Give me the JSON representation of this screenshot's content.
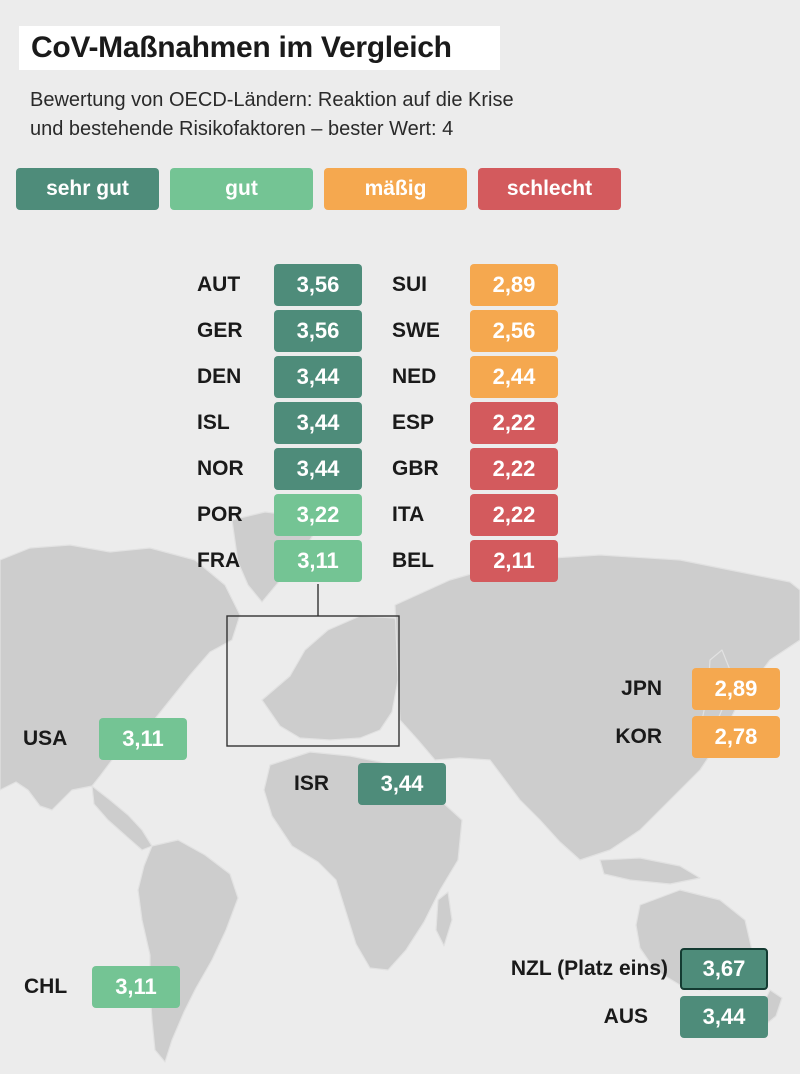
{
  "header": {
    "title": "CoV-Maßnahmen im Vergleich",
    "subtitle_line1": "Bewertung von OECD-Ländern: Reaktion auf die Krise",
    "subtitle_line2": "und bestehende Risikofaktoren – bester Wert: 4"
  },
  "colors": {
    "sehr_gut": "#4e8c7a",
    "gut": "#74c494",
    "maessig": "#f5a84f",
    "schlecht": "#d35a5d",
    "map_land": "#cdcdcd",
    "background": "#ececec"
  },
  "legend": [
    {
      "label": "sehr gut",
      "category": "sehr_gut"
    },
    {
      "label": "gut",
      "category": "gut"
    },
    {
      "label": "mäßig",
      "category": "maessig"
    },
    {
      "label": "schlecht",
      "category": "schlecht"
    }
  ],
  "europe_left": [
    {
      "code": "AUT",
      "score": "3,56",
      "category": "sehr_gut"
    },
    {
      "code": "GER",
      "score": "3,56",
      "category": "sehr_gut"
    },
    {
      "code": "DEN",
      "score": "3,44",
      "category": "sehr_gut"
    },
    {
      "code": "ISL",
      "score": "3,44",
      "category": "sehr_gut"
    },
    {
      "code": "NOR",
      "score": "3,44",
      "category": "sehr_gut"
    },
    {
      "code": "POR",
      "score": "3,22",
      "category": "gut"
    },
    {
      "code": "FRA",
      "score": "3,11",
      "category": "gut"
    }
  ],
  "europe_right": [
    {
      "code": "SUI",
      "score": "2,89",
      "category": "maessig"
    },
    {
      "code": "SWE",
      "score": "2,56",
      "category": "maessig"
    },
    {
      "code": "NED",
      "score": "2,44",
      "category": "maessig"
    },
    {
      "code": "ESP",
      "score": "2,22",
      "category": "schlecht"
    },
    {
      "code": "GBR",
      "score": "2,22",
      "category": "schlecht"
    },
    {
      "code": "ITA",
      "score": "2,22",
      "category": "schlecht"
    },
    {
      "code": "BEL",
      "score": "2,11",
      "category": "schlecht"
    }
  ],
  "others": {
    "usa": {
      "code": "USA",
      "score": "3,11",
      "category": "gut"
    },
    "chl": {
      "code": "CHL",
      "score": "3,11",
      "category": "gut"
    },
    "isr": {
      "code": "ISR",
      "score": "3,44",
      "category": "sehr_gut"
    },
    "jpn": {
      "code": "JPN",
      "score": "2,89",
      "category": "maessig"
    },
    "kor": {
      "code": "KOR",
      "score": "2,78",
      "category": "maessig"
    },
    "nzl": {
      "code": "NZL (Platz eins)",
      "score": "3,67",
      "category": "sehr_gut"
    },
    "aus": {
      "code": "AUS",
      "score": "3,44",
      "category": "sehr_gut"
    }
  }
}
